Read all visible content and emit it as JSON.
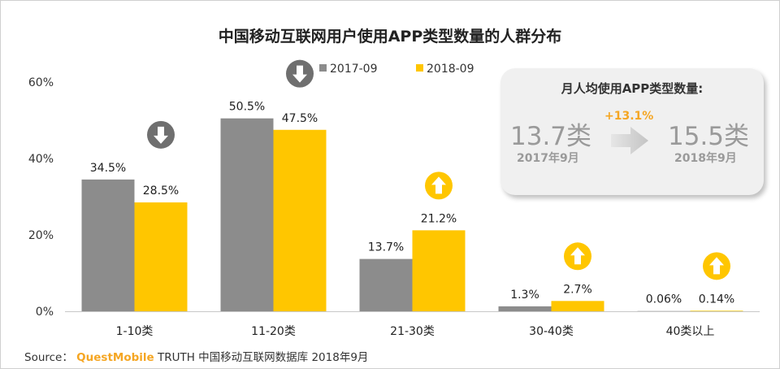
{
  "title": "中国移动互联网用户使用APP类型数量的人群分布",
  "chart_data": {
    "type": "bar",
    "categories": [
      "1-10类",
      "11-20类",
      "21-30类",
      "30-40类",
      "40类以上"
    ],
    "series": [
      {
        "name": "2017-09",
        "values": [
          34.5,
          50.5,
          13.7,
          1.3,
          0.06
        ],
        "labels": [
          "34.5%",
          "50.5%",
          "13.7%",
          "1.3%",
          "0.06%"
        ],
        "color": "#8c8c8c"
      },
      {
        "name": "2018-09",
        "values": [
          28.5,
          47.5,
          21.2,
          2.7,
          0.14
        ],
        "labels": [
          "28.5%",
          "47.5%",
          "21.2%",
          "2.7%",
          "0.14%"
        ],
        "color": "#ffc600"
      }
    ],
    "trend": [
      "down",
      "down",
      "up",
      "up",
      "up"
    ],
    "yticks": [
      "0%",
      "20%",
      "40%",
      "60%"
    ],
    "ylim": [
      0,
      60
    ],
    "title": "中国移动互联网用户使用APP类型数量的人群分布"
  },
  "trend_colors": {
    "down": "#6f6f6f",
    "up": "#ffc600"
  },
  "callout": {
    "title": "月人均使用APP类型数量:",
    "before_value": "13.7类",
    "before_date": "2017年9月",
    "change": "+13.1%",
    "after_value": "15.5类",
    "after_date": "2018年9月"
  },
  "source": {
    "prefix": "Source：",
    "brand": "QuestMobile",
    "rest": "TRUTH 中国移动互联网数据库 2018年9月"
  }
}
